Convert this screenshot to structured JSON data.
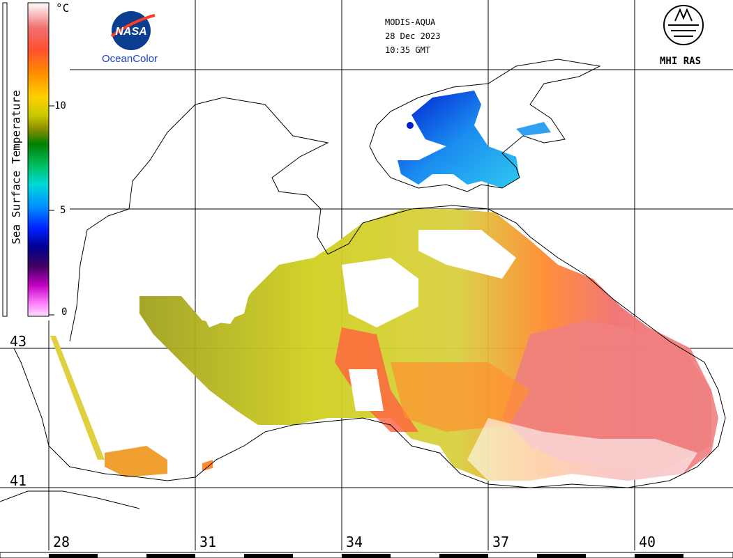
{
  "header": {
    "sensor": "MODIS-AQUA",
    "date": "28 Dec 2023",
    "time": "10:35 GMT"
  },
  "logos": {
    "nasa_text": "NASA",
    "oceancolor": "OceanColor",
    "mhi": "MHI RAS"
  },
  "colorbar": {
    "unit": "°C",
    "title": "Sea Surface Temperature",
    "ticks": [
      "10",
      "5",
      "0"
    ]
  },
  "axes": {
    "longitudes": [
      "28",
      "31",
      "34",
      "37",
      "40"
    ],
    "latitudes": [
      "43",
      "41"
    ]
  }
}
